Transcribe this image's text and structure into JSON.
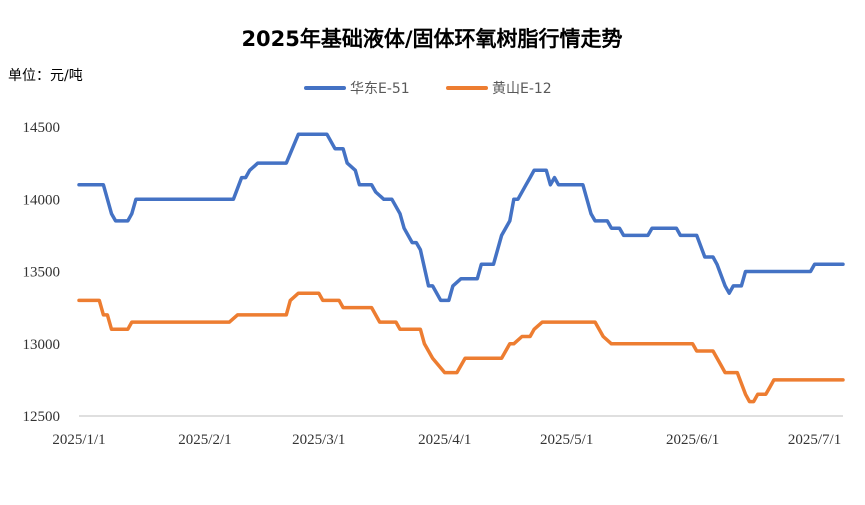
{
  "chart_data": {
    "type": "line",
    "title": "2025年基础液体/固体环氧树脂行情走势",
    "unit_label": "单位：元/吨",
    "xlabel": "",
    "ylabel": "",
    "x_range": [
      "2025-01-01",
      "2025-07-08"
    ],
    "x_ticks": [
      "2025/1/1",
      "2025/2/1",
      "2025/3/1",
      "2025/4/1",
      "2025/5/1",
      "2025/6/1",
      "2025/7/1"
    ],
    "x_tick_dates": [
      "2025-01-01",
      "2025-02-01",
      "2025-03-01",
      "2025-04-01",
      "2025-05-01",
      "2025-06-01",
      "2025-07-01"
    ],
    "ylim": [
      12500,
      14500
    ],
    "y_ticks": [
      "14500",
      "14000",
      "13500",
      "13000",
      "12500"
    ],
    "y_tick_values": [
      14500,
      14000,
      13500,
      13000,
      12500
    ],
    "grid": "none",
    "legend_position": "top-center",
    "series": [
      {
        "name": "华东E-51",
        "color": "#4472C4",
        "points": [
          [
            "2025-01-01",
            14100
          ],
          [
            "2025-01-06",
            14100
          ],
          [
            "2025-01-07",
            14100
          ],
          [
            "2025-01-09",
            13900
          ],
          [
            "2025-01-10",
            13850
          ],
          [
            "2025-01-13",
            13850
          ],
          [
            "2025-01-14",
            13900
          ],
          [
            "2025-01-15",
            14000
          ],
          [
            "2025-01-21",
            14000
          ],
          [
            "2025-02-07",
            14000
          ],
          [
            "2025-02-08",
            14000
          ],
          [
            "2025-02-10",
            14150
          ],
          [
            "2025-02-11",
            14150
          ],
          [
            "2025-02-12",
            14200
          ],
          [
            "2025-02-14",
            14250
          ],
          [
            "2025-02-21",
            14250
          ],
          [
            "2025-02-24",
            14450
          ],
          [
            "2025-03-03",
            14450
          ],
          [
            "2025-03-05",
            14350
          ],
          [
            "2025-03-07",
            14350
          ],
          [
            "2025-03-08",
            14250
          ],
          [
            "2025-03-10",
            14200
          ],
          [
            "2025-03-11",
            14100
          ],
          [
            "2025-03-14",
            14100
          ],
          [
            "2025-03-15",
            14050
          ],
          [
            "2025-03-17",
            14000
          ],
          [
            "2025-03-19",
            14000
          ],
          [
            "2025-03-21",
            13900
          ],
          [
            "2025-03-22",
            13800
          ],
          [
            "2025-03-24",
            13700
          ],
          [
            "2025-03-25",
            13700
          ],
          [
            "2025-03-26",
            13650
          ],
          [
            "2025-03-28",
            13400
          ],
          [
            "2025-03-29",
            13400
          ],
          [
            "2025-03-31",
            13300
          ],
          [
            "2025-04-02",
            13300
          ],
          [
            "2025-04-03",
            13400
          ],
          [
            "2025-04-05",
            13450
          ],
          [
            "2025-04-09",
            13450
          ],
          [
            "2025-04-10",
            13550
          ],
          [
            "2025-04-13",
            13550
          ],
          [
            "2025-04-15",
            13750
          ],
          [
            "2025-04-17",
            13850
          ],
          [
            "2025-04-18",
            14000
          ],
          [
            "2025-04-19",
            14000
          ],
          [
            "2025-04-21",
            14100
          ],
          [
            "2025-04-22",
            14150
          ],
          [
            "2025-04-23",
            14200
          ],
          [
            "2025-04-26",
            14200
          ],
          [
            "2025-04-27",
            14100
          ],
          [
            "2025-04-28",
            14150
          ],
          [
            "2025-04-29",
            14100
          ],
          [
            "2025-05-05",
            14100
          ],
          [
            "2025-05-07",
            13900
          ],
          [
            "2025-05-08",
            13850
          ],
          [
            "2025-05-11",
            13850
          ],
          [
            "2025-05-12",
            13800
          ],
          [
            "2025-05-14",
            13800
          ],
          [
            "2025-05-15",
            13750
          ],
          [
            "2025-05-21",
            13750
          ],
          [
            "2025-05-22",
            13800
          ],
          [
            "2025-05-28",
            13800
          ],
          [
            "2025-05-29",
            13750
          ],
          [
            "2025-06-02",
            13750
          ],
          [
            "2025-06-04",
            13600
          ],
          [
            "2025-06-06",
            13600
          ],
          [
            "2025-06-07",
            13550
          ],
          [
            "2025-06-09",
            13400
          ],
          [
            "2025-06-10",
            13350
          ],
          [
            "2025-06-11",
            13400
          ],
          [
            "2025-06-13",
            13400
          ],
          [
            "2025-06-14",
            13500
          ],
          [
            "2025-06-30",
            13500
          ],
          [
            "2025-07-01",
            13550
          ],
          [
            "2025-07-08",
            13550
          ]
        ]
      },
      {
        "name": "黄山E-12",
        "color": "#ED7D31",
        "points": [
          [
            "2025-01-01",
            13300
          ],
          [
            "2025-01-05",
            13300
          ],
          [
            "2025-01-06",
            13300
          ],
          [
            "2025-01-07",
            13200
          ],
          [
            "2025-01-08",
            13200
          ],
          [
            "2025-01-09",
            13100
          ],
          [
            "2025-01-13",
            13100
          ],
          [
            "2025-01-14",
            13150
          ],
          [
            "2025-02-07",
            13150
          ],
          [
            "2025-02-09",
            13200
          ],
          [
            "2025-02-21",
            13200
          ],
          [
            "2025-02-22",
            13300
          ],
          [
            "2025-02-24",
            13350
          ],
          [
            "2025-03-01",
            13350
          ],
          [
            "2025-03-02",
            13300
          ],
          [
            "2025-03-06",
            13300
          ],
          [
            "2025-03-07",
            13250
          ],
          [
            "2025-03-14",
            13250
          ],
          [
            "2025-03-16",
            13150
          ],
          [
            "2025-03-20",
            13150
          ],
          [
            "2025-03-21",
            13100
          ],
          [
            "2025-03-26",
            13100
          ],
          [
            "2025-03-27",
            13000
          ],
          [
            "2025-03-29",
            12900
          ],
          [
            "2025-04-01",
            12800
          ],
          [
            "2025-04-04",
            12800
          ],
          [
            "2025-04-06",
            12900
          ],
          [
            "2025-04-14",
            12900
          ],
          [
            "2025-04-15",
            12900
          ],
          [
            "2025-04-17",
            13000
          ],
          [
            "2025-04-18",
            13000
          ],
          [
            "2025-04-20",
            13050
          ],
          [
            "2025-04-22",
            13050
          ],
          [
            "2025-04-23",
            13100
          ],
          [
            "2025-04-25",
            13150
          ],
          [
            "2025-05-08",
            13150
          ],
          [
            "2025-05-10",
            13050
          ],
          [
            "2025-05-12",
            13000
          ],
          [
            "2025-05-30",
            13000
          ],
          [
            "2025-06-01",
            13000
          ],
          [
            "2025-06-02",
            12950
          ],
          [
            "2025-06-06",
            12950
          ],
          [
            "2025-06-08",
            12850
          ],
          [
            "2025-06-09",
            12800
          ],
          [
            "2025-06-12",
            12800
          ],
          [
            "2025-06-14",
            12650
          ],
          [
            "2025-06-15",
            12600
          ],
          [
            "2025-06-16",
            12600
          ],
          [
            "2025-06-17",
            12650
          ],
          [
            "2025-06-19",
            12650
          ],
          [
            "2025-06-20",
            12700
          ],
          [
            "2025-06-21",
            12750
          ],
          [
            "2025-07-08",
            12750
          ]
        ]
      }
    ]
  }
}
